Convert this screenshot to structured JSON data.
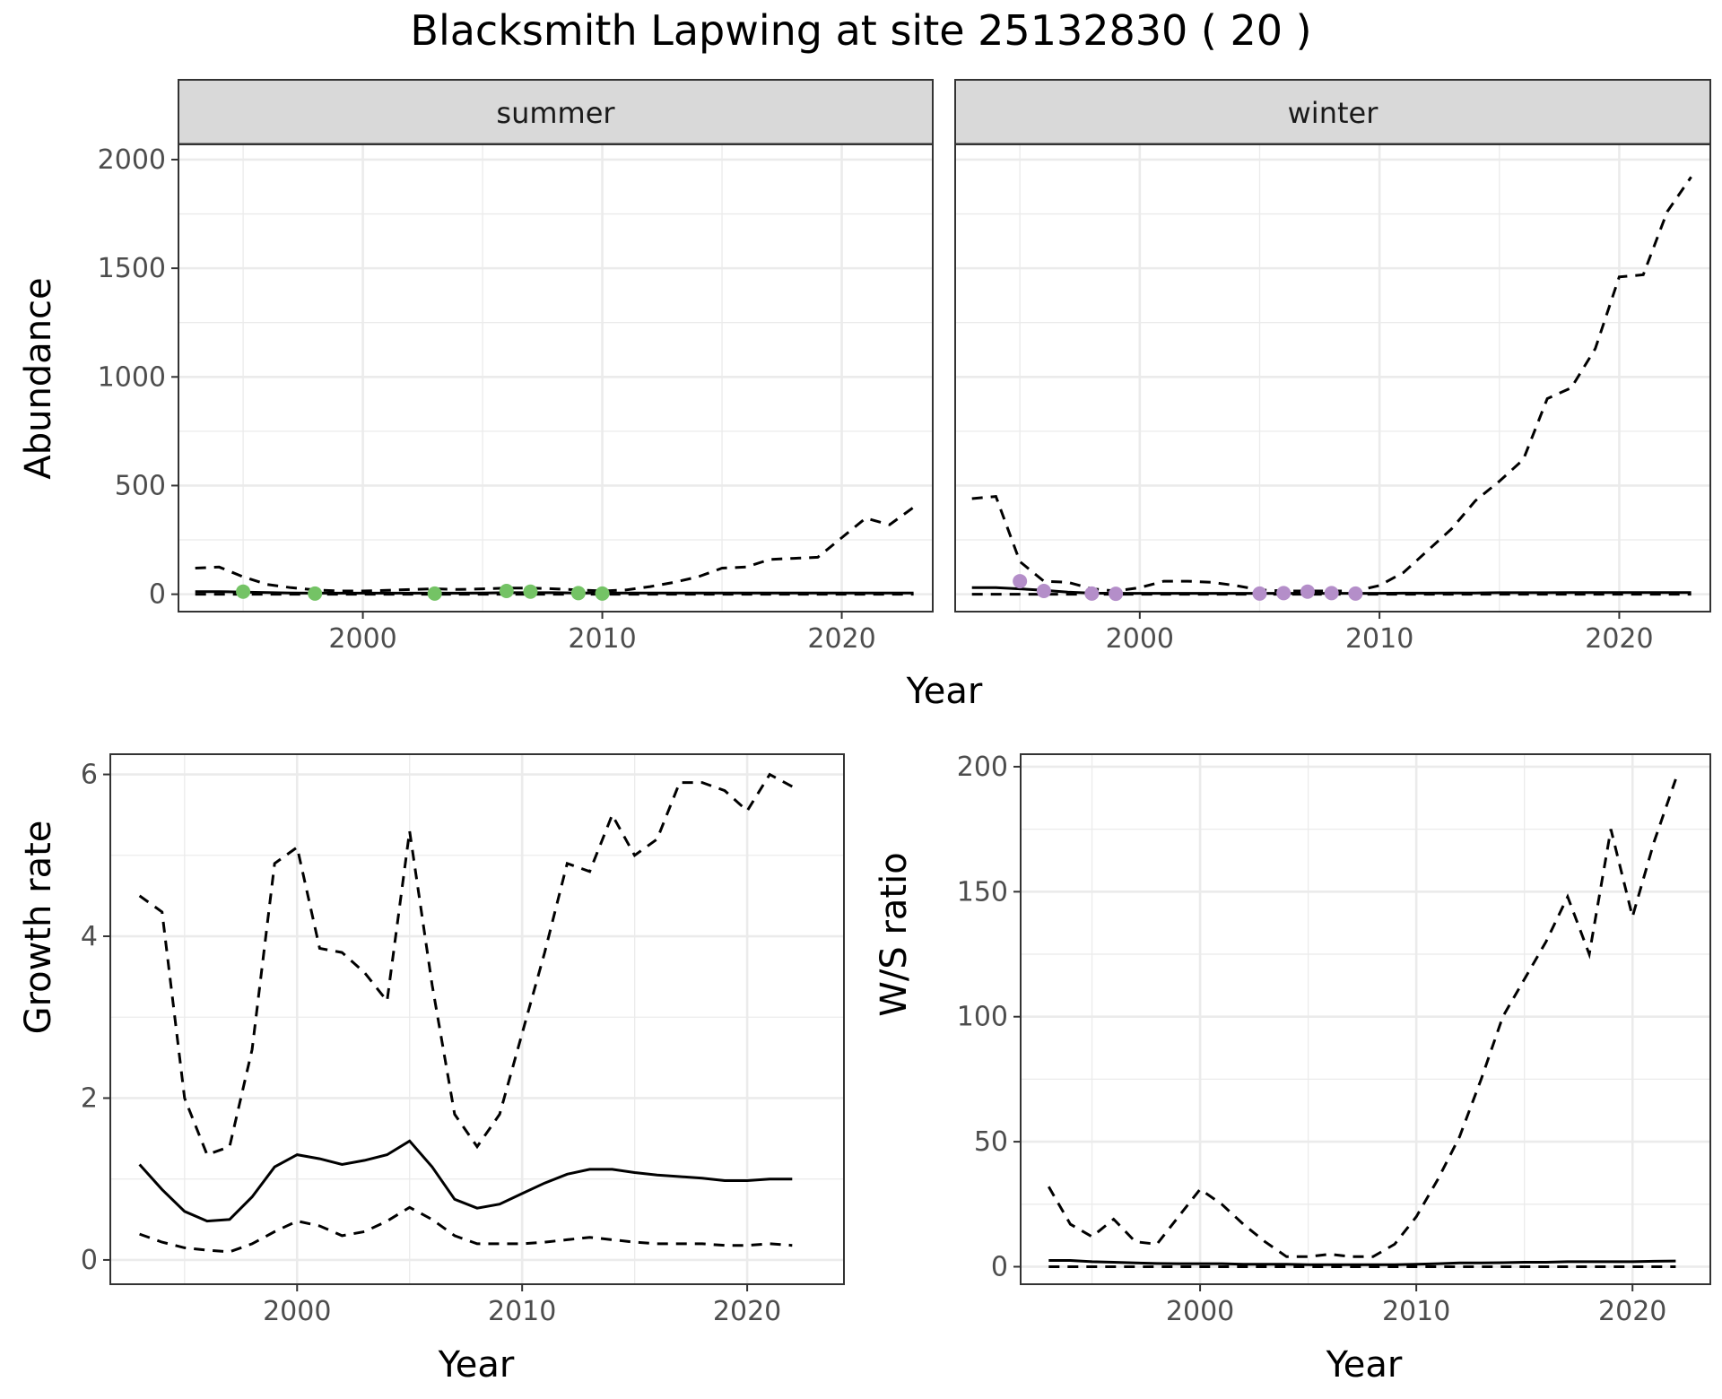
{
  "figure": {
    "title": "Blacksmith Lapwing at site 25132830 ( 20 )"
  },
  "chart_data": [
    {
      "id": "abundance",
      "type": "line",
      "ylabel": "Abundance",
      "xlabel": "Year",
      "xlim": [
        1992.3,
        2023.8
      ],
      "ylim": [
        -80,
        2070
      ],
      "xticks": [
        2000,
        2010,
        2020
      ],
      "yticks": [
        0,
        500,
        1000,
        1500,
        2000
      ],
      "grid": true,
      "facets": [
        {
          "strip": "summer",
          "point_color": "#74c365",
          "x": [
            1993,
            1994,
            1995,
            1996,
            1997,
            1998,
            1999,
            2000,
            2001,
            2002,
            2003,
            2004,
            2005,
            2006,
            2007,
            2008,
            2009,
            2010,
            2011,
            2012,
            2013,
            2014,
            2015,
            2016,
            2017,
            2018,
            2019,
            2020,
            2021,
            2022,
            2023
          ],
          "estimate": [
            12,
            12,
            10,
            8,
            6,
            5,
            5,
            5,
            5,
            5,
            5,
            5,
            6,
            7,
            7,
            7,
            6,
            6,
            6,
            6,
            6,
            6,
            6,
            6,
            6,
            6,
            6,
            6,
            6,
            6,
            6
          ],
          "lower": [
            0,
            0,
            0,
            0,
            0,
            0,
            0,
            0,
            0,
            0,
            0,
            0,
            0,
            0,
            0,
            0,
            0,
            0,
            0,
            0,
            0,
            0,
            0,
            0,
            0,
            0,
            0,
            0,
            0,
            0,
            0
          ],
          "upper": [
            120,
            125,
            80,
            45,
            30,
            20,
            15,
            15,
            18,
            22,
            25,
            22,
            25,
            28,
            28,
            25,
            20,
            15,
            20,
            35,
            55,
            80,
            120,
            125,
            160,
            165,
            170,
            260,
            350,
            320,
            400
          ],
          "observed": {
            "x": [
              1995,
              1998,
              2003,
              2006,
              2007,
              2009,
              2010
            ],
            "y": [
              12,
              3,
              3,
              15,
              12,
              5,
              3
            ]
          }
        },
        {
          "strip": "winter",
          "point_color": "#b48ec9",
          "x": [
            1993,
            1994,
            1995,
            1996,
            1997,
            1998,
            1999,
            2000,
            2001,
            2002,
            2003,
            2004,
            2005,
            2006,
            2007,
            2008,
            2009,
            2010,
            2011,
            2012,
            2013,
            2014,
            2015,
            2016,
            2017,
            2018,
            2019,
            2020,
            2021,
            2022,
            2023
          ],
          "estimate": [
            30,
            30,
            25,
            18,
            10,
            5,
            4,
            4,
            4,
            4,
            4,
            4,
            4,
            4,
            4,
            4,
            4,
            4,
            5,
            5,
            6,
            6,
            7,
            7,
            7,
            8,
            8,
            8,
            8,
            8,
            8
          ],
          "lower": [
            0,
            0,
            0,
            0,
            0,
            0,
            0,
            0,
            0,
            0,
            0,
            0,
            0,
            0,
            0,
            0,
            0,
            0,
            0,
            0,
            0,
            0,
            0,
            0,
            0,
            0,
            0,
            0,
            0,
            0,
            0
          ],
          "upper": [
            440,
            450,
            150,
            60,
            55,
            25,
            15,
            30,
            60,
            60,
            55,
            40,
            20,
            15,
            15,
            15,
            15,
            40,
            100,
            200,
            300,
            430,
            520,
            620,
            900,
            950,
            1130,
            1460,
            1470,
            1760,
            1920
          ],
          "observed": {
            "x": [
              1995,
              1996,
              1998,
              1999,
              2005,
              2006,
              2007,
              2008,
              2009
            ],
            "y": [
              60,
              15,
              3,
              2,
              3,
              5,
              12,
              5,
              3
            ]
          }
        }
      ]
    },
    {
      "id": "growth",
      "type": "line",
      "ylabel": "Growth rate",
      "xlabel": "Year",
      "xlim": [
        1991.7,
        2024.3
      ],
      "ylim": [
        -0.3,
        6.25
      ],
      "xticks": [
        2000,
        2010,
        2020
      ],
      "yticks": [
        0,
        2,
        4,
        6
      ],
      "grid": true,
      "x": [
        1993,
        1994,
        1995,
        1996,
        1997,
        1998,
        1999,
        2000,
        2001,
        2002,
        2003,
        2004,
        2005,
        2006,
        2007,
        2008,
        2009,
        2010,
        2011,
        2012,
        2013,
        2014,
        2015,
        2016,
        2017,
        2018,
        2019,
        2020,
        2021,
        2022
      ],
      "estimate": [
        1.18,
        0.87,
        0.6,
        0.48,
        0.5,
        0.78,
        1.15,
        1.3,
        1.25,
        1.18,
        1.23,
        1.3,
        1.47,
        1.15,
        0.75,
        0.64,
        0.69,
        0.82,
        0.95,
        1.06,
        1.12,
        1.12,
        1.08,
        1.05,
        1.03,
        1.01,
        0.98,
        0.98,
        1.0,
        1.0
      ],
      "lower": [
        0.32,
        0.22,
        0.15,
        0.12,
        0.1,
        0.2,
        0.35,
        0.48,
        0.42,
        0.3,
        0.35,
        0.48,
        0.65,
        0.5,
        0.3,
        0.2,
        0.2,
        0.2,
        0.22,
        0.25,
        0.28,
        0.25,
        0.22,
        0.2,
        0.2,
        0.2,
        0.18,
        0.18,
        0.2,
        0.18
      ],
      "upper": [
        4.5,
        4.3,
        2.0,
        1.3,
        1.4,
        2.6,
        4.9,
        5.1,
        3.85,
        3.8,
        3.55,
        3.2,
        5.3,
        3.4,
        1.8,
        1.4,
        1.8,
        2.8,
        3.8,
        4.9,
        4.8,
        5.5,
        5.0,
        5.2,
        5.9,
        5.9,
        5.8,
        5.55,
        6.0,
        5.85
      ]
    },
    {
      "id": "ratio",
      "type": "line",
      "ylabel": "W/S ratio",
      "xlabel": "Year",
      "xlim": [
        1991.7,
        2023.6
      ],
      "ylim": [
        -7,
        205
      ],
      "xticks": [
        2000,
        2010,
        2020
      ],
      "yticks": [
        0,
        50,
        100,
        150,
        200
      ],
      "grid": true,
      "x": [
        1993,
        1994,
        1995,
        1996,
        1997,
        1998,
        1999,
        2000,
        2001,
        2002,
        2003,
        2004,
        2005,
        2006,
        2007,
        2008,
        2009,
        2010,
        2011,
        2012,
        2013,
        2014,
        2015,
        2016,
        2017,
        2018,
        2019,
        2020,
        2021,
        2022
      ],
      "estimate": [
        2.5,
        2.5,
        2,
        1.8,
        1.5,
        1.3,
        1.2,
        1.2,
        1.2,
        1,
        1,
        1,
        0.8,
        0.8,
        0.8,
        0.8,
        0.8,
        1,
        1.2,
        1.5,
        1.5,
        1.6,
        1.8,
        1.8,
        2,
        2,
        2,
        2,
        2.2,
        2.3
      ],
      "lower": [
        0,
        0,
        0,
        0,
        0,
        0,
        0,
        0,
        0,
        0,
        0,
        0,
        0,
        0,
        0,
        0,
        0,
        0,
        0,
        0,
        0,
        0,
        0,
        0,
        0,
        0,
        0,
        0,
        0,
        0
      ],
      "upper": [
        32,
        17,
        12,
        19,
        10,
        9,
        20,
        31,
        25,
        17,
        10,
        4,
        4,
        5,
        4,
        4,
        9,
        20,
        35,
        52,
        75,
        100,
        115,
        130,
        148,
        125,
        175,
        140,
        170,
        195
      ]
    }
  ]
}
